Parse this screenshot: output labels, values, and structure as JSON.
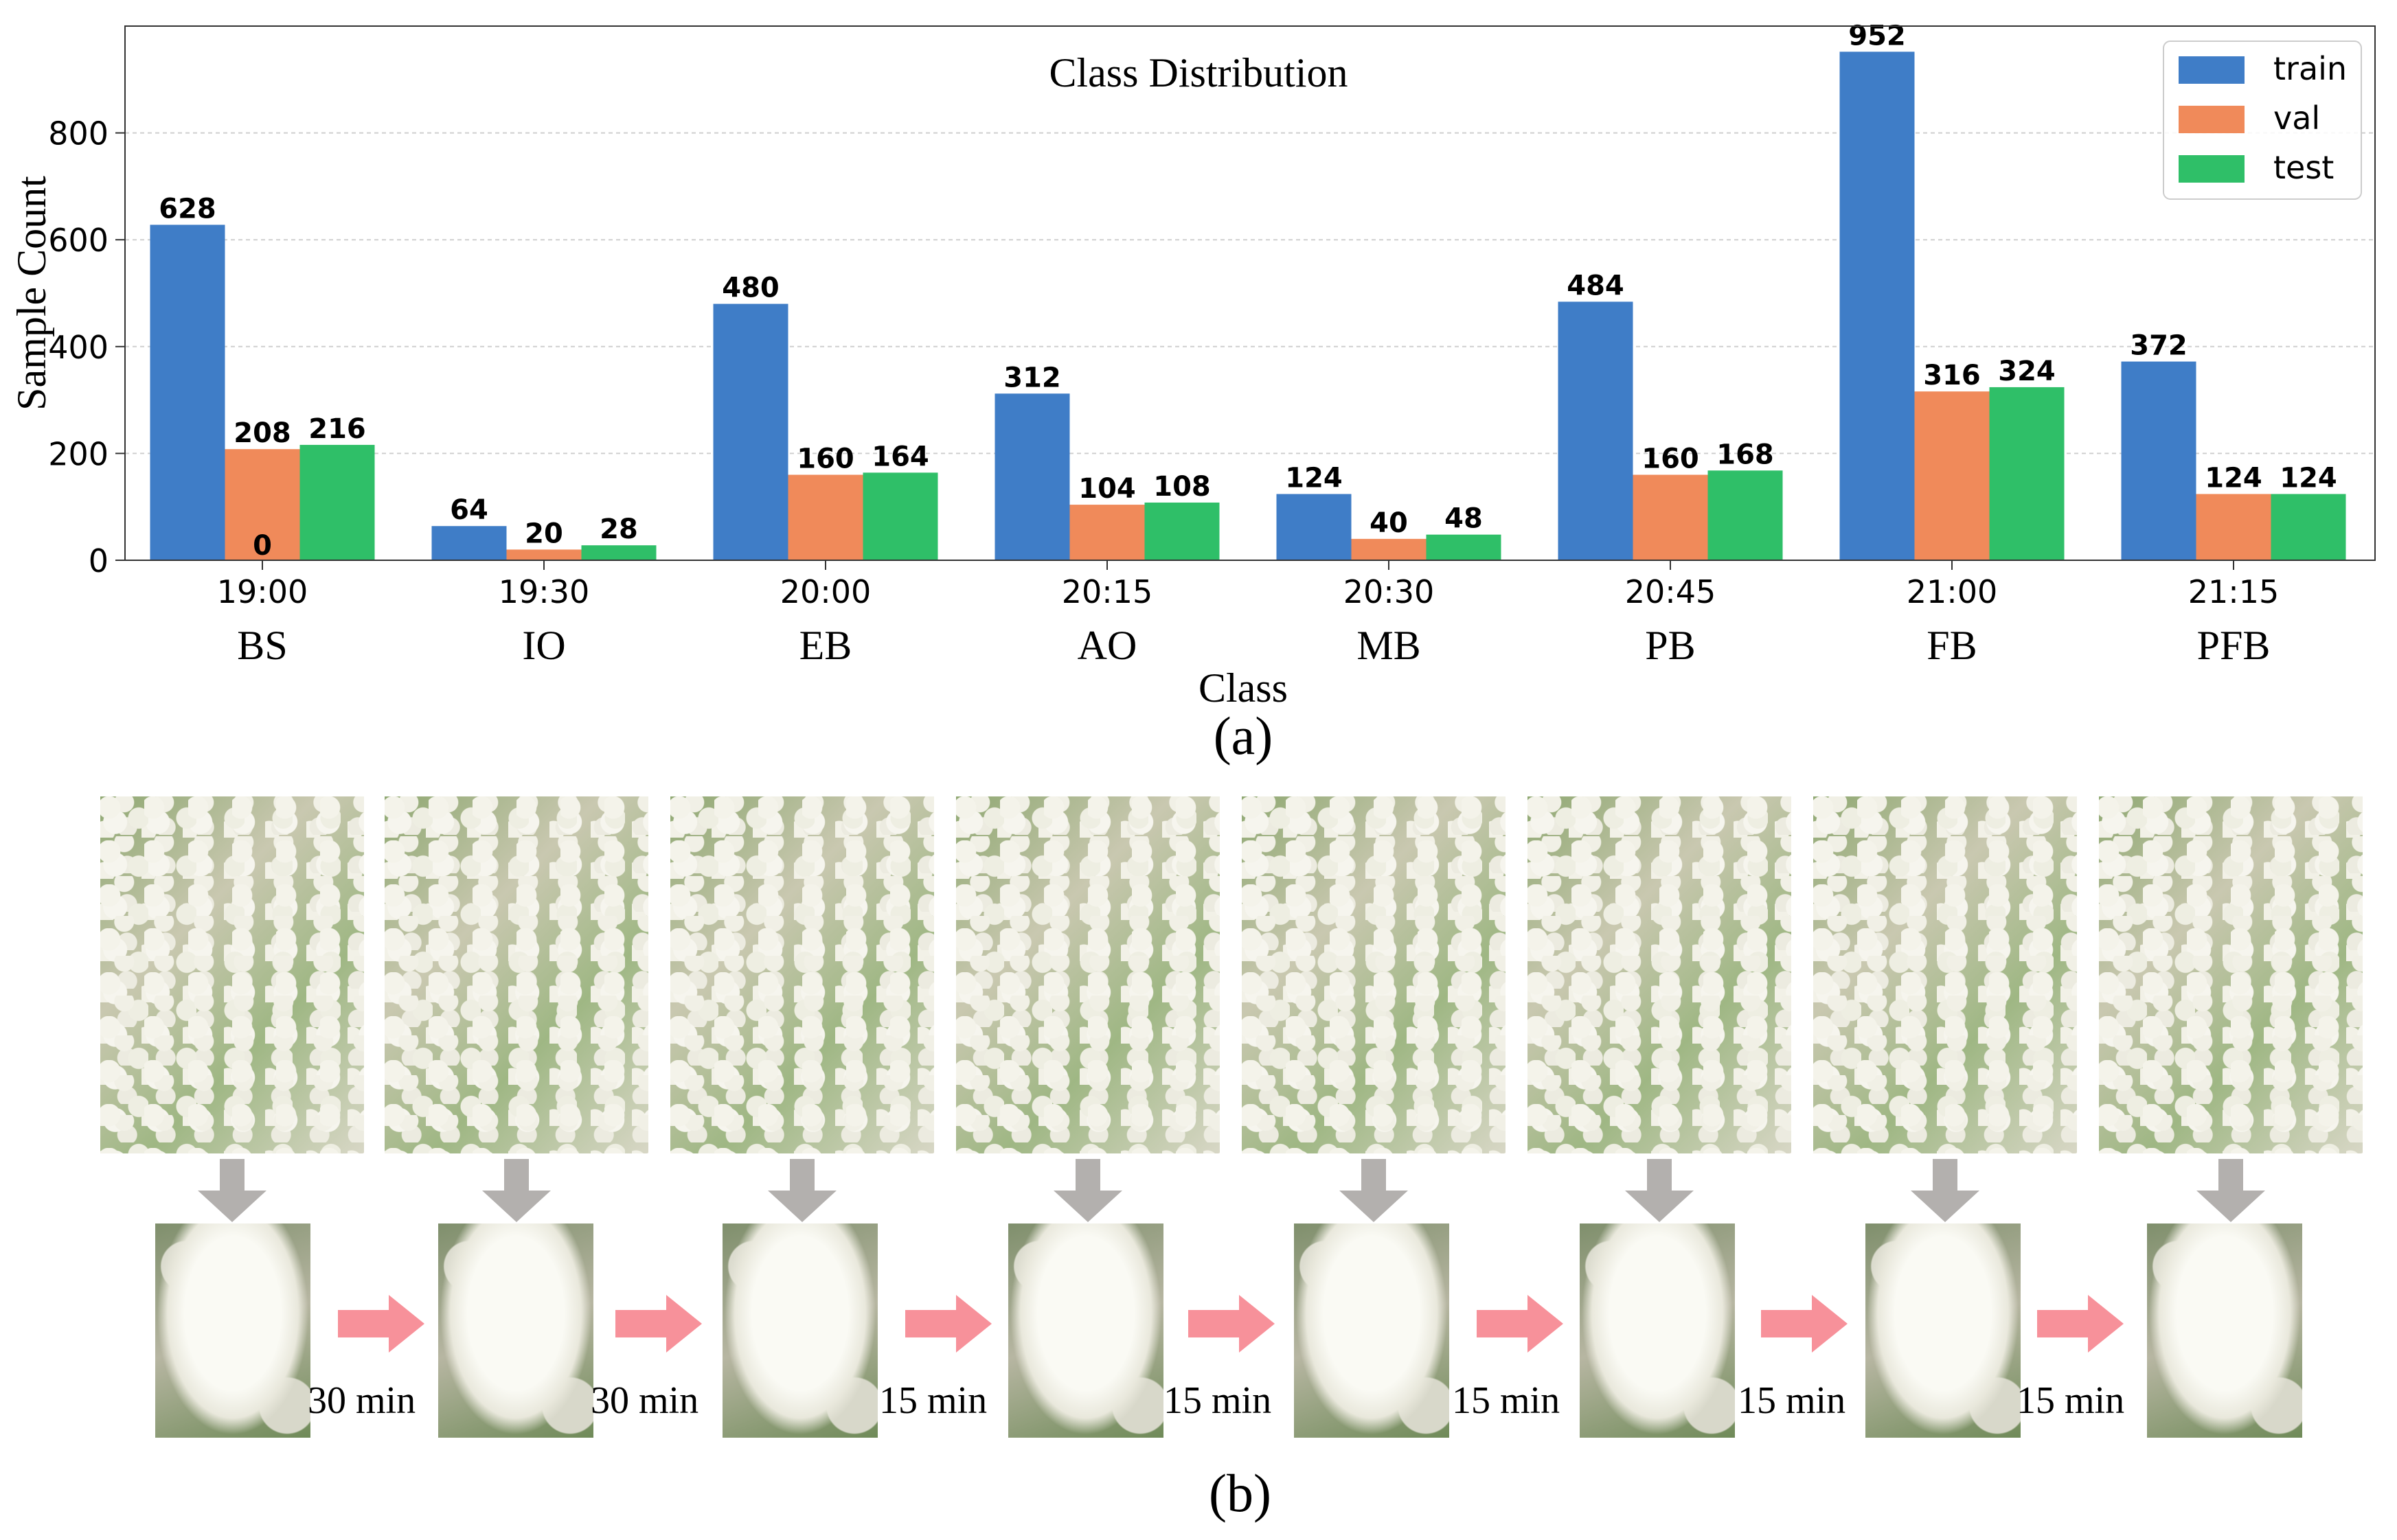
{
  "figure": {
    "panel_a_label": "(a)",
    "panel_b_label": "(b)",
    "intervals": [
      "30 min",
      "30 min",
      "15 min",
      "15 min",
      "15 min",
      "15 min",
      "15 min"
    ]
  },
  "chart_data": {
    "type": "bar",
    "title": "Class Distribution",
    "xlabel": "Class",
    "ylabel": "Sample Count",
    "ylim": [
      0,
      1000
    ],
    "yticks": [
      0,
      200,
      400,
      600,
      800
    ],
    "grid": true,
    "legend_position": "top-right",
    "categories": [
      "BS",
      "IO",
      "EB",
      "AO",
      "MB",
      "PB",
      "FB",
      "PFB"
    ],
    "times": [
      "19:00",
      "19:30",
      "20:00",
      "20:15",
      "20:30",
      "20:45",
      "21:00",
      "21:15"
    ],
    "series": [
      {
        "name": "train",
        "color": "#3f7dc7",
        "values": [
          628,
          64,
          480,
          312,
          124,
          484,
          952,
          372
        ]
      },
      {
        "name": "val",
        "color": "#f08a5a",
        "values": [
          208,
          20,
          160,
          104,
          40,
          160,
          316,
          124
        ]
      },
      {
        "name": "test",
        "color": "#2fbf68",
        "values": [
          216,
          28,
          164,
          108,
          48,
          168,
          324,
          124
        ]
      }
    ],
    "annotations": [
      {
        "text": "0",
        "category": "BS",
        "series": "val"
      }
    ]
  }
}
